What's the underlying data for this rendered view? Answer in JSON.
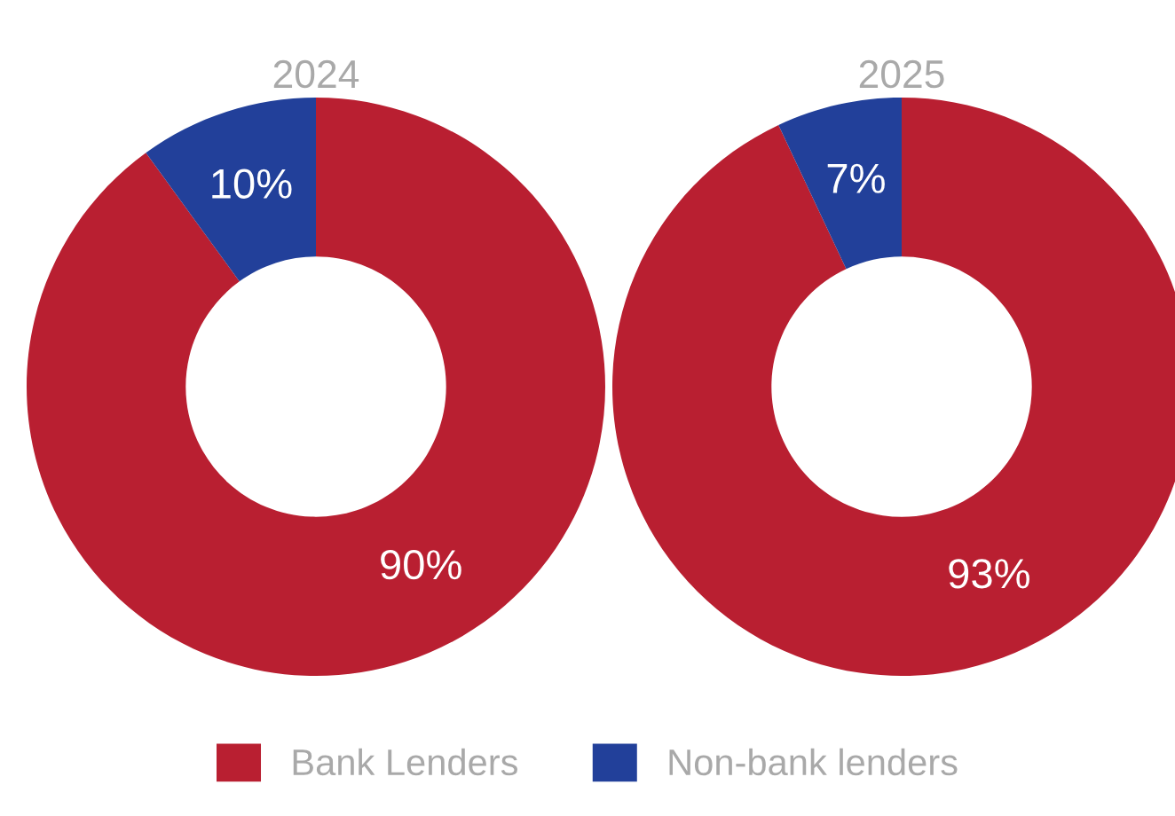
{
  "chart_data": [
    {
      "type": "donut",
      "title": "2024",
      "categories": [
        "Bank Lenders",
        "Non-bank lenders"
      ],
      "values": [
        90,
        10
      ],
      "colors": [
        "#b91f31",
        "#22409a"
      ],
      "value_labels": [
        "90%",
        "10%"
      ],
      "legend": "bottom"
    },
    {
      "type": "donut",
      "title": "2025",
      "categories": [
        null,
        null
      ],
      "values": [
        93,
        7
      ],
      "colors": [
        "#b91f31",
        "#22409a"
      ],
      "value_labels": [
        "93%",
        "7%"
      ]
    }
  ]
}
